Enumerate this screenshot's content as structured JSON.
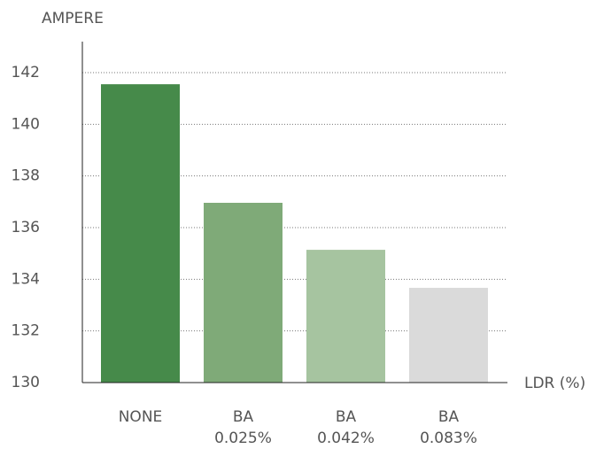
{
  "chart_data": {
    "type": "bar",
    "y_label": "AMPERE",
    "x_label": "LDR (%)",
    "categories": [
      "NONE",
      "BA\n0.025%",
      "BA\n0.042%",
      "BA\n0.083%"
    ],
    "values": [
      141.55,
      136.96,
      135.14,
      133.67
    ],
    "colors": [
      "#468a4a",
      "#7faa78",
      "#a6c4a0",
      "#dadada"
    ],
    "ylim": [
      130,
      143.2
    ],
    "yticks": [
      130,
      132,
      134,
      136,
      138,
      140,
      142
    ],
    "grid": true
  }
}
